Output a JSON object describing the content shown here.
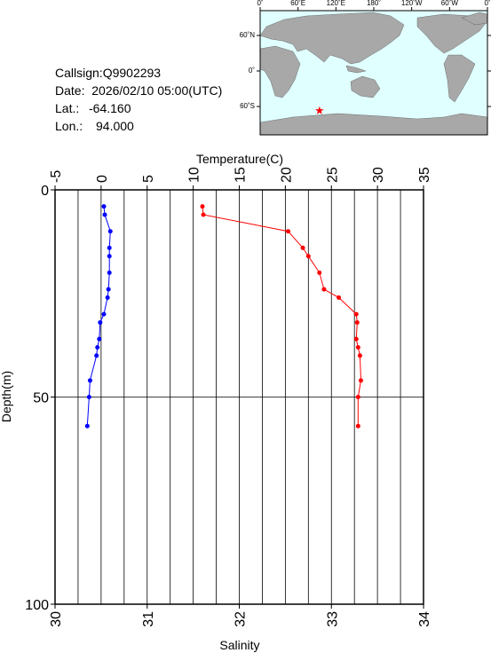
{
  "info": [
    {
      "label": "Callsign:Q9902293"
    },
    {
      "label": "Date:  2026/02/10 05:00(UTC)"
    },
    {
      "label": "Lat.:",
      "value": -64.16,
      "value_label": "-64.160"
    },
    {
      "label": "Lon.:",
      "value": 94.0,
      "value_label": "94.000"
    }
  ],
  "map": {
    "lon_ticks": [
      {
        "value": 0,
        "label": "0˚"
      },
      {
        "value": 60,
        "label": "60˚E"
      },
      {
        "value": 120,
        "label": "120˚E"
      },
      {
        "value": 180,
        "label": "180˚"
      },
      {
        "value": 240,
        "label": "120˚W"
      },
      {
        "value": 300,
        "label": "60˚W"
      },
      {
        "value": 360,
        "label": "0˚"
      }
    ],
    "lat_ticks": [
      {
        "value": 60,
        "label": "60˚N"
      },
      {
        "value": 0,
        "label": "0˚"
      },
      {
        "value": -60,
        "label": "60˚S"
      }
    ]
  },
  "chart_data": {
    "type": "profile",
    "x_label": "Salinity",
    "x2_label": "Temperature(C)",
    "y_label": "Depth(m)",
    "xlim": [
      30,
      34
    ],
    "xticks": [
      30,
      31,
      32,
      33,
      34
    ],
    "x2lim": [
      -5,
      35
    ],
    "x2ticks": [
      -5,
      0,
      5,
      10,
      15,
      20,
      25,
      30,
      35
    ],
    "ylim": [
      0,
      100
    ],
    "yticks": [
      0,
      50,
      100
    ],
    "y_inverted": true,
    "grid": true,
    "y": [
      4,
      6,
      10,
      14,
      16,
      20,
      24,
      26,
      30,
      32,
      36,
      38,
      40,
      46,
      50,
      57
    ],
    "series": [
      {
        "color": "#ff0000",
        "axis": "x2",
        "values": [
          11.0,
          11.1,
          20.3,
          21.9,
          22.5,
          23.7,
          24.2,
          25.8,
          27.7,
          27.8,
          27.7,
          27.9,
          28.1,
          28.2,
          27.9,
          27.9
        ]
      },
      {
        "color": "#0000ff",
        "axis": "x",
        "values": [
          30.53,
          30.54,
          30.6,
          30.59,
          30.59,
          30.59,
          30.58,
          30.57,
          30.53,
          30.49,
          30.48,
          30.46,
          30.45,
          30.38,
          30.37,
          30.35
        ]
      }
    ]
  }
}
